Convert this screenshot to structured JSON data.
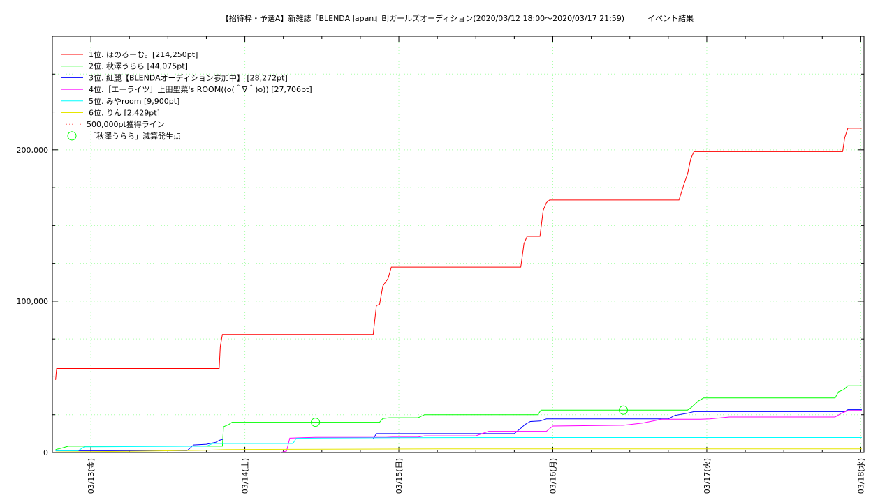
{
  "chart_data": {
    "type": "line",
    "title": "【招待枠・予選A】新雑誌『BLENDA Japan』BJガールズオーディション(2020/03/12 18:00～2020/03/17 21:59)　　　イベント結果",
    "xlabel": "",
    "ylabel": "",
    "x_start": "2020-03-12 18:00",
    "x_end": "2020-03-18 00:30",
    "ylim": [
      0,
      275000
    ],
    "yticks": [
      {
        "value": 0,
        "label": "0"
      },
      {
        "value": 100000,
        "label": "100,000"
      },
      {
        "value": 200000,
        "label": "200,000"
      }
    ],
    "xticks": [
      {
        "value": "2020-03-13 00:00",
        "label": "03/13(金)"
      },
      {
        "value": "2020-03-14 00:00",
        "label": "03/14(土)"
      },
      {
        "value": "2020-03-15 00:00",
        "label": "03/15(日)"
      },
      {
        "value": "2020-03-16 00:00",
        "label": "03/16(月)"
      },
      {
        "value": "2020-03-17 00:00",
        "label": "03/17(火)"
      },
      {
        "value": "2020-03-18 00:00",
        "label": "03/18(水)"
      }
    ],
    "grid": true,
    "legend_position": "top-left",
    "series": [
      {
        "name": "1位. ほのるーむ。[214,250pt]",
        "color": "#ff0000",
        "points": [
          [
            "2020-03-12 18:30",
            48000
          ],
          [
            "2020-03-12 18:40",
            55500
          ],
          [
            "2020-03-13 20:00",
            55500
          ],
          [
            "2020-03-13 20:10",
            70000
          ],
          [
            "2020-03-13 20:30",
            78000
          ],
          [
            "2020-03-14 20:00",
            78000
          ],
          [
            "2020-03-14 20:30",
            97000
          ],
          [
            "2020-03-14 21:00",
            98000
          ],
          [
            "2020-03-14 21:30",
            110000
          ],
          [
            "2020-03-14 22:20",
            115000
          ],
          [
            "2020-03-14 22:50",
            122500
          ],
          [
            "2020-03-15 19:00",
            122500
          ],
          [
            "2020-03-15 19:30",
            138000
          ],
          [
            "2020-03-15 20:00",
            142800
          ],
          [
            "2020-03-15 22:00",
            142800
          ],
          [
            "2020-03-15 22:30",
            160000
          ],
          [
            "2020-03-15 23:00",
            165000
          ],
          [
            "2020-03-15 23:30",
            166800
          ],
          [
            "2020-03-16 19:40",
            166800
          ],
          [
            "2020-03-16 20:30",
            178000
          ],
          [
            "2020-03-16 21:00",
            184000
          ],
          [
            "2020-03-16 21:30",
            194000
          ],
          [
            "2020-03-16 22:00",
            198800
          ],
          [
            "2020-03-17 21:10",
            198800
          ],
          [
            "2020-03-17 21:30",
            208000
          ],
          [
            "2020-03-17 21:59",
            214250
          ],
          [
            "2020-03-18 00:10",
            214250
          ]
        ]
      },
      {
        "name": "2位. 秋澤うらら [44,075pt]",
        "color": "#00ff00",
        "points": [
          [
            "2020-03-12 18:30",
            2000
          ],
          [
            "2020-03-12 19:30",
            3000
          ],
          [
            "2020-03-12 20:30",
            4200
          ],
          [
            "2020-03-13 18:00",
            4200
          ],
          [
            "2020-03-13 20:30",
            4200
          ],
          [
            "2020-03-13 20:40",
            17000
          ],
          [
            "2020-03-13 21:30",
            18500
          ],
          [
            "2020-03-13 22:00",
            20000
          ],
          [
            "2020-03-14 21:00",
            20000
          ],
          [
            "2020-03-14 21:30",
            22500
          ],
          [
            "2020-03-14 22:30",
            23000
          ],
          [
            "2020-03-15 03:00",
            23000
          ],
          [
            "2020-03-15 04:00",
            25000
          ],
          [
            "2020-03-15 21:40",
            25000
          ],
          [
            "2020-03-15 22:10",
            28000
          ],
          [
            "2020-03-16 21:00",
            28000
          ],
          [
            "2020-03-16 21:40",
            30000
          ],
          [
            "2020-03-16 22:40",
            34000
          ],
          [
            "2020-03-16 23:30",
            36000
          ],
          [
            "2020-03-17 20:00",
            36000
          ],
          [
            "2020-03-17 20:30",
            40000
          ],
          [
            "2020-03-17 21:20",
            41500
          ],
          [
            "2020-03-17 22:00",
            44075
          ],
          [
            "2020-03-18 00:10",
            44075
          ]
        ]
      },
      {
        "name": "3位. 紅麗【BLENDAオーディション参加中】 [28,272pt]",
        "color": "#0000ff",
        "points": [
          [
            "2020-03-12 18:30",
            1200
          ],
          [
            "2020-03-13 15:00",
            1200
          ],
          [
            "2020-03-13 16:00",
            5000
          ],
          [
            "2020-03-13 18:00",
            5500
          ],
          [
            "2020-03-13 19:30",
            6800
          ],
          [
            "2020-03-13 20:00",
            8000
          ],
          [
            "2020-03-13 20:40",
            9000
          ],
          [
            "2020-03-14 20:00",
            9000
          ],
          [
            "2020-03-14 20:30",
            12500
          ],
          [
            "2020-03-15 18:00",
            12500
          ],
          [
            "2020-03-15 19:00",
            16000
          ],
          [
            "2020-03-15 19:40",
            18500
          ],
          [
            "2020-03-15 20:30",
            20500
          ],
          [
            "2020-03-15 22:00",
            20800
          ],
          [
            "2020-03-15 23:00",
            22200
          ],
          [
            "2020-03-16 18:00",
            22200
          ],
          [
            "2020-03-16 19:00",
            24500
          ],
          [
            "2020-03-16 21:00",
            26000
          ],
          [
            "2020-03-16 22:00",
            27000
          ],
          [
            "2020-03-17 21:30",
            27000
          ],
          [
            "2020-03-17 22:00",
            28272
          ],
          [
            "2020-03-18 00:10",
            28272
          ]
        ]
      },
      {
        "name": "4位.［エーライツ］上田聖菜's ROOM((o(＾∇＾)o)) [27,706pt]",
        "color": "#ff00ff",
        "points": [
          [
            "2020-03-14 05:30",
            0
          ],
          [
            "2020-03-14 06:30",
            1000
          ],
          [
            "2020-03-14 07:00",
            9500
          ],
          [
            "2020-03-14 09:00",
            9800
          ],
          [
            "2020-03-14 11:00",
            10000
          ],
          [
            "2020-03-14 22:00",
            10000
          ],
          [
            "2020-03-14 23:00",
            10200
          ],
          [
            "2020-03-15 03:00",
            10200
          ],
          [
            "2020-03-15 04:00",
            11000
          ],
          [
            "2020-03-15 12:00",
            11000
          ],
          [
            "2020-03-15 13:00",
            12500
          ],
          [
            "2020-03-15 14:00",
            14000
          ],
          [
            "2020-03-15 23:00",
            14000
          ],
          [
            "2020-03-16 00:00",
            17500
          ],
          [
            "2020-03-16 11:00",
            18000
          ],
          [
            "2020-03-16 14:00",
            19500
          ],
          [
            "2020-03-16 17:00",
            22000
          ],
          [
            "2020-03-16 23:00",
            22000
          ],
          [
            "2020-03-17 00:30",
            22200
          ],
          [
            "2020-03-17 03:30",
            23500
          ],
          [
            "2020-03-17 20:00",
            23500
          ],
          [
            "2020-03-17 21:00",
            26000
          ],
          [
            "2020-03-17 22:00",
            27706
          ],
          [
            "2020-03-18 00:10",
            27706
          ]
        ]
      },
      {
        "name": "5位. みやroom [9,900pt]",
        "color": "#00ffff",
        "points": [
          [
            "2020-03-12 18:30",
            1200
          ],
          [
            "2020-03-12 22:00",
            1200
          ],
          [
            "2020-03-12 23:00",
            3800
          ],
          [
            "2020-03-13 18:00",
            4200
          ],
          [
            "2020-03-13 19:00",
            6000
          ],
          [
            "2020-03-14 07:30",
            6000
          ],
          [
            "2020-03-14 08:00",
            9400
          ],
          [
            "2020-03-14 12:00",
            9600
          ],
          [
            "2020-03-15 00:00",
            9800
          ],
          [
            "2020-03-16 00:00",
            9900
          ],
          [
            "2020-03-18 00:10",
            9900
          ]
        ]
      },
      {
        "name": "6位. りん [2,429pt]",
        "color": "#e6e600",
        "points": [
          [
            "2020-03-12 18:30",
            400
          ],
          [
            "2020-03-13 06:00",
            800
          ],
          [
            "2020-03-13 18:00",
            1500
          ],
          [
            "2020-03-13 21:00",
            2000
          ],
          [
            "2020-03-14 12:00",
            2200
          ],
          [
            "2020-03-15 12:00",
            2429
          ],
          [
            "2020-03-18 00:10",
            2429
          ]
        ]
      }
    ],
    "extra_legend": [
      {
        "name": "500,000pt獲得ライン",
        "color": "#ff6666",
        "style": "dotted"
      },
      {
        "name": "「秋澤うらら」減算発生点",
        "color": "#00ff00",
        "style": "circle"
      }
    ],
    "markers": [
      {
        "x": "2020-03-14 11:00",
        "y": 20000
      },
      {
        "x": "2020-03-16 11:00",
        "y": 28000
      }
    ]
  }
}
